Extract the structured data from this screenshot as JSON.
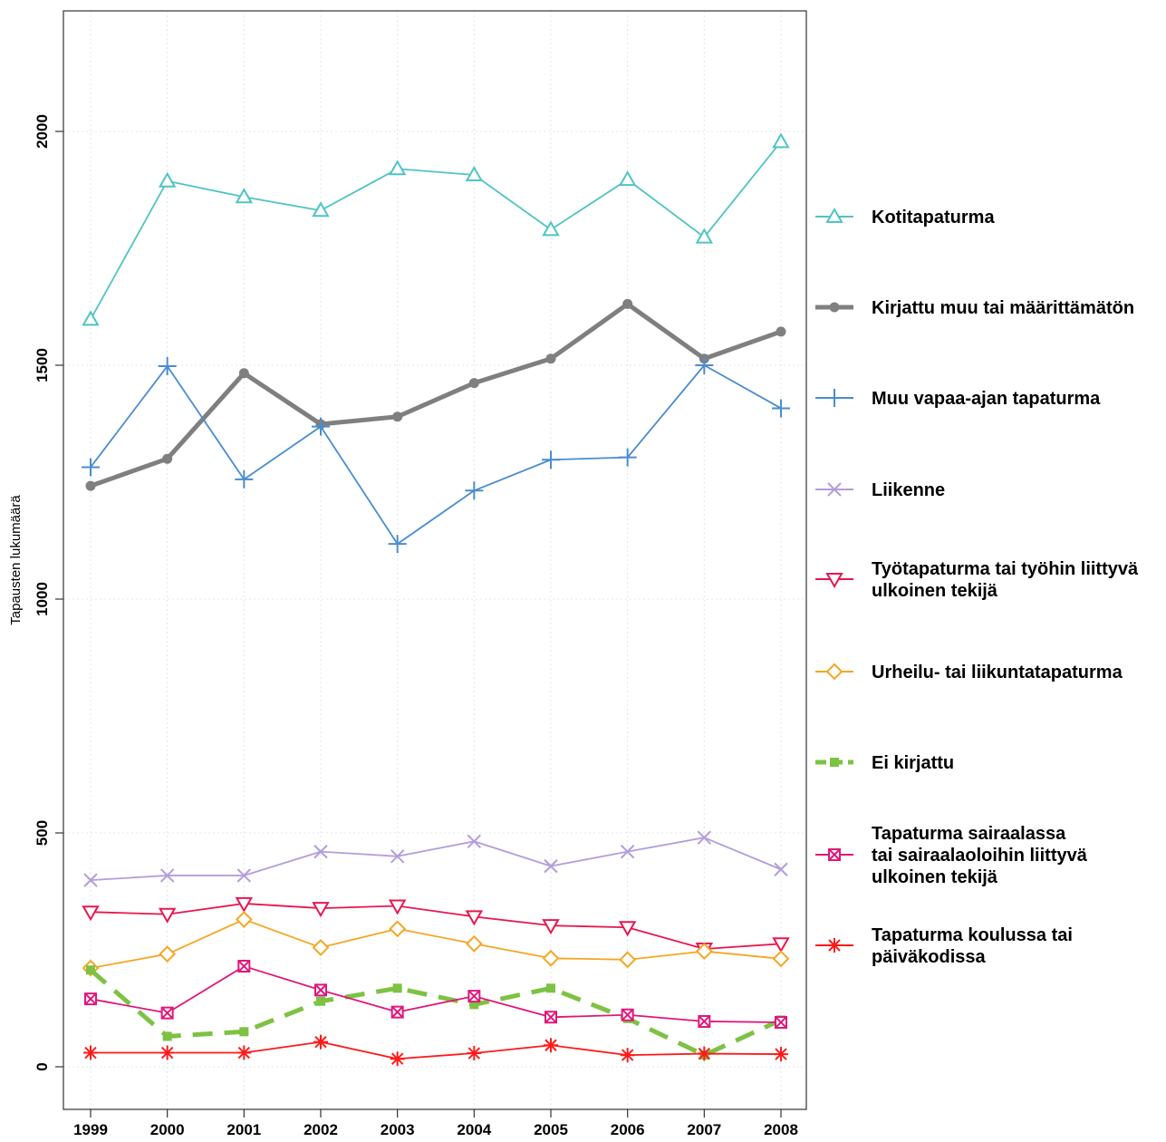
{
  "chart_data": {
    "type": "line",
    "title": "",
    "xlabel": "",
    "ylabel": "Tapausten lukumäärä",
    "x": [
      "1999",
      "2000",
      "2001",
      "2002",
      "2003",
      "2004",
      "2005",
      "2006",
      "2007",
      "2008"
    ],
    "y_ticks": [
      "0",
      "500",
      "1000",
      "1500",
      "2000"
    ],
    "ylim": [
      -110,
      2275
    ],
    "grid": true,
    "legend_position": "right",
    "series": [
      {
        "name": "Kotitapaturma",
        "marker": "triangle-up-open",
        "color": "#4fc4c4",
        "line": "solid",
        "values": [
          1598,
          1894,
          1860,
          1831,
          1920,
          1907,
          1790,
          1897,
          1774,
          1978
        ]
      },
      {
        "name": "Kirjattu muu tai määrittämätön",
        "marker": "circle-filled",
        "color": "#7f7f7f",
        "line": "thick",
        "values": [
          1242,
          1300,
          1483,
          1374,
          1390,
          1462,
          1514,
          1631,
          1514,
          1572
        ]
      },
      {
        "name": "Muu vapaa-ajan tapaturma",
        "marker": "plus",
        "color": "#4a8cd0",
        "line": "solid",
        "values": [
          1282,
          1498,
          1256,
          1369,
          1118,
          1232,
          1298,
          1303,
          1500,
          1408
        ]
      },
      {
        "name": "Liikenne",
        "marker": "x",
        "color": "#b39ddb",
        "line": "solid",
        "values": [
          399,
          409,
          409,
          460,
          450,
          482,
          429,
          460,
          490,
          422
        ]
      },
      {
        "name": "Työtapaturma tai työhin liittyvä ulkoinen tekijä",
        "marker": "triangle-down-open",
        "color": "#e8174f",
        "line": "solid",
        "values": [
          331,
          326,
          349,
          339,
          344,
          321,
          302,
          298,
          252,
          263
        ]
      },
      {
        "name": "Urheilu- tai liikuntatapaturma",
        "marker": "diamond-open",
        "color": "#f5a623",
        "line": "solid",
        "values": [
          211,
          241,
          315,
          255,
          295,
          263,
          232,
          229,
          247,
          231
        ]
      },
      {
        "name": "Ei kirjattu",
        "marker": "square-filled",
        "color": "#7dc242",
        "line": "dashed",
        "values": [
          207,
          65,
          75,
          140,
          168,
          133,
          168,
          103,
          25,
          100
        ]
      },
      {
        "name": "Tapaturma sairaalassa tai sairaalaoloihin liittyvä ulkoinen tekijä",
        "marker": "square-cross",
        "color": "#e0177a",
        "line": "solid",
        "values": [
          145,
          115,
          215,
          164,
          117,
          151,
          106,
          111,
          97,
          95
        ]
      },
      {
        "name": "Tapaturma koulussa tai päiväkodissa",
        "marker": "asterisk",
        "color": "#ff1a1a",
        "line": "solid",
        "values": [
          30,
          30,
          30,
          53,
          17,
          29,
          46,
          25,
          28,
          27
        ]
      }
    ]
  },
  "legend": [
    {
      "lines": [
        "Kotitapaturma"
      ]
    },
    {
      "lines": [
        "Kirjattu muu tai määrittämätön"
      ]
    },
    {
      "lines": [
        "Muu vapaa-ajan tapaturma"
      ]
    },
    {
      "lines": [
        "Liikenne"
      ]
    },
    {
      "lines": [
        "Työtapaturma tai työhin liittyvä",
        "ulkoinen tekijä"
      ]
    },
    {
      "lines": [
        "Urheilu- tai liikuntatapaturma"
      ]
    },
    {
      "lines": [
        "Ei kirjattu"
      ]
    },
    {
      "lines": [
        "Tapaturma sairaalassa",
        "tai sairaalaoloihin liittyvä",
        "ulkoinen tekijä"
      ]
    },
    {
      "lines": [
        "Tapaturma koulussa tai",
        "päiväkodissa"
      ]
    }
  ]
}
